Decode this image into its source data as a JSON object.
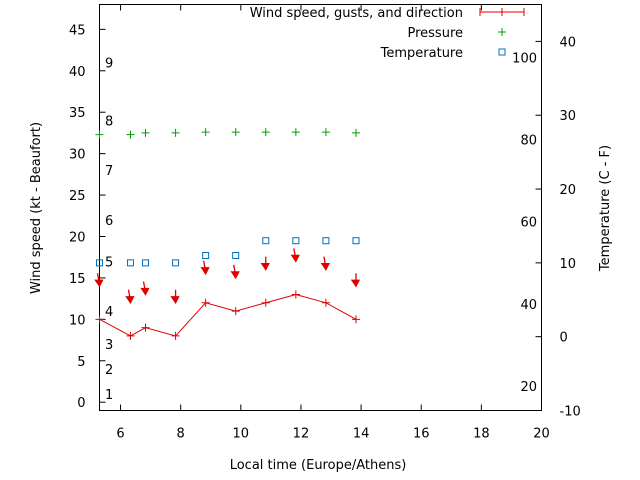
{
  "chart_data": {
    "type": "line",
    "xlabel": "Local time (Europe/Athens)",
    "ylabel": "Wind speed (kt - Beaufort)",
    "y2label": "Temperature (C - F)",
    "xlim": [
      5.3,
      20
    ],
    "ylim": [
      -1,
      48
    ],
    "y2lim": [
      -10,
      45
    ],
    "x_ticks": [
      6,
      8,
      10,
      12,
      14,
      16,
      18,
      20
    ],
    "y_ticks": [
      0,
      5,
      10,
      15,
      20,
      25,
      30,
      35,
      40,
      45
    ],
    "y2_ticks": [
      -10,
      0,
      10,
      20,
      30,
      40
    ],
    "beaufort_labels": [
      {
        "text": "1",
        "y": 1
      },
      {
        "text": "2",
        "y": 4
      },
      {
        "text": "3",
        "y": 7
      },
      {
        "text": "4",
        "y": 11
      },
      {
        "text": "5",
        "y": 17
      },
      {
        "text": "6",
        "y": 22
      },
      {
        "text": "7",
        "y": 28
      },
      {
        "text": "8",
        "y": 34
      },
      {
        "text": "9",
        "y": 41
      }
    ],
    "fahrenheit_labels": [
      {
        "text": "20",
        "y2": -6.7
      },
      {
        "text": "40",
        "y2": 4.4
      },
      {
        "text": "60",
        "y2": 15.6
      },
      {
        "text": "80",
        "y2": 26.7
      },
      {
        "text": "100",
        "y2": 37.8
      }
    ],
    "legend": {
      "position": "top-right",
      "entries": [
        "Wind speed, gusts, and direction",
        "Pressure",
        "Temperature"
      ]
    },
    "colors": {
      "wind": "#e00000",
      "pressure": "#00a000",
      "temperature": "#0070c0"
    },
    "series": [
      {
        "name": "Wind speed, gusts, and direction",
        "x": [
          5.3,
          6.33,
          6.83,
          7.83,
          8.83,
          9.83,
          10.83,
          11.83,
          12.83,
          13.83
        ],
        "values": [
          10,
          8,
          9,
          8,
          12,
          11,
          12,
          13,
          12,
          10
        ],
        "direction_arrows_y": [
          14,
          12,
          13,
          12,
          15.5,
          15,
          16,
          17,
          16,
          14
        ]
      },
      {
        "name": "Pressure",
        "x": [
          5.3,
          6.33,
          6.83,
          7.83,
          8.83,
          9.83,
          10.83,
          11.83,
          12.83,
          13.83
        ],
        "values": [
          32.3,
          32.3,
          32.5,
          32.5,
          32.6,
          32.6,
          32.6,
          32.6,
          32.6,
          32.5
        ]
      },
      {
        "name": "Temperature",
        "axis": "y2",
        "x": [
          5.3,
          6.33,
          6.83,
          7.83,
          8.83,
          9.83,
          10.83,
          11.83,
          12.83,
          13.83
        ],
        "values": [
          10,
          10,
          10,
          10,
          11,
          11,
          13,
          13,
          13,
          13
        ]
      }
    ]
  }
}
